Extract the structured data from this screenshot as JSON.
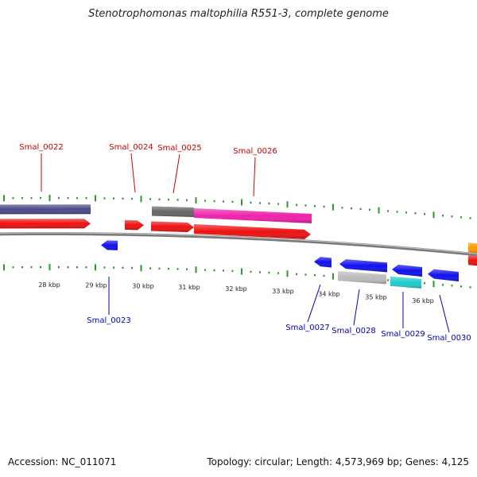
{
  "title": "Stenotrophomonas maltophilia R551-3, complete genome",
  "footer": {
    "accession": "Accession: NC_011071",
    "summary": "Topology: circular; Length: 4,573,969 bp; Genes: 4,125"
  },
  "colors": {
    "backbone": "#7a7a7a",
    "tick_green": "#2a9a2a",
    "label_red": "#cc0000",
    "label_blue": "#0000bb",
    "red": "#ee1111",
    "blue": "#1111ee",
    "purple": "#4a4a8a",
    "gray": "#666666",
    "magenta": "#ee22aa",
    "lightgray": "#bbbbbb",
    "cyan": "#22cccc",
    "orange": "#ff9900"
  },
  "kbp_labels": [
    "28 kbp",
    "29 kbp",
    "30 kbp",
    "31 kbp",
    "32 kbp",
    "33 kbp",
    "34 kbp",
    "35 kbp",
    "36 kbp"
  ],
  "gene_labels_top": [
    "Smal_0022",
    "Smal_0024",
    "Smal_0025",
    "Smal_0026"
  ],
  "gene_labels_bottom": [
    "Smal_0023",
    "Smal_0027",
    "Smal_0028",
    "Smal_0029",
    "Smal_0030"
  ]
}
